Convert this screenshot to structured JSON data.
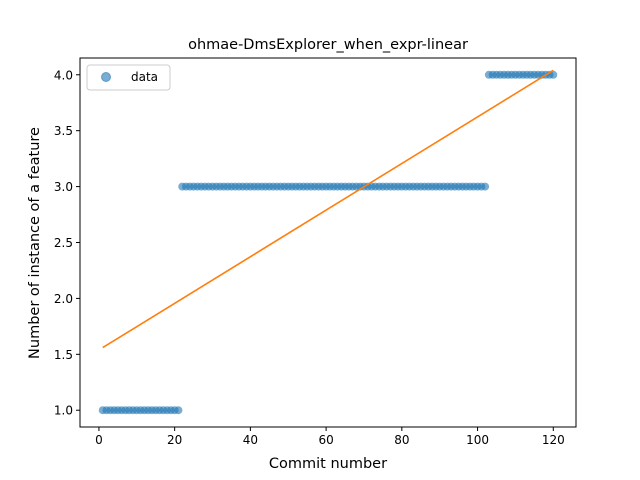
{
  "chart_data": {
    "type": "scatter",
    "title": "ohmae-DmsExplorer_when_expr-linear",
    "xlabel": "Commit number",
    "ylabel": "Number of instance of a feature",
    "xlim": [
      -5,
      126
    ],
    "ylim": [
      0.85,
      4.15
    ],
    "xticks": [
      0,
      20,
      40,
      60,
      80,
      100,
      120
    ],
    "yticks": [
      1.0,
      1.5,
      2.0,
      2.5,
      3.0,
      3.5,
      4.0
    ],
    "xtick_labels": [
      "0",
      "20",
      "40",
      "60",
      "80",
      "100",
      "120"
    ],
    "ytick_labels": [
      "1.0",
      "1.5",
      "2.0",
      "2.5",
      "3.0",
      "3.5",
      "4.0"
    ],
    "legend": {
      "position": "top-left",
      "entries": [
        "data"
      ]
    },
    "grid": false,
    "colors": {
      "data": "#1f77b4",
      "fit": "#ff7f0e"
    },
    "series": [
      {
        "name": "data",
        "kind": "points",
        "segments": [
          {
            "x_start": 1,
            "x_end": 21,
            "y": 1.0
          },
          {
            "x_start": 22,
            "x_end": 102,
            "y": 3.0
          },
          {
            "x_start": 103,
            "x_end": 120,
            "y": 4.0
          }
        ]
      },
      {
        "kind": "line",
        "x": [
          1,
          120
        ],
        "y": [
          1.56,
          4.04
        ]
      }
    ]
  }
}
